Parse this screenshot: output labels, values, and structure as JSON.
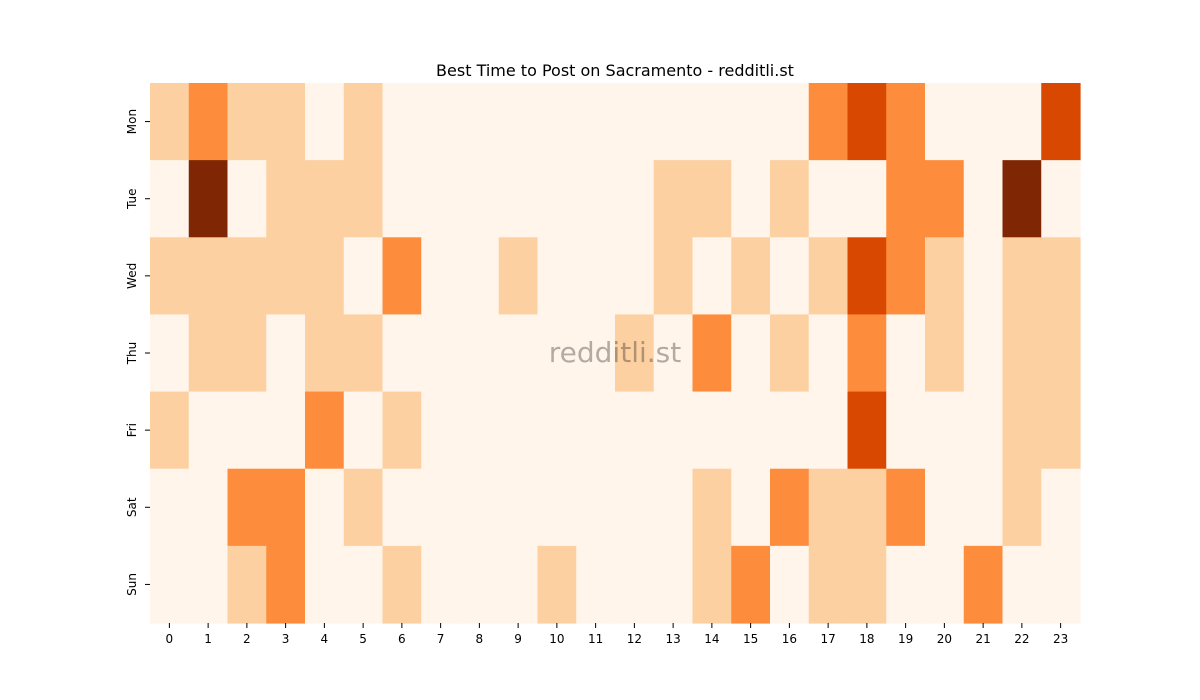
{
  "chart_data": {
    "type": "heatmap",
    "title": "Best Time to Post on Sacramento - redditli.st",
    "xlabel": "",
    "ylabel": "",
    "x_categories": [
      "0",
      "1",
      "2",
      "3",
      "4",
      "5",
      "6",
      "7",
      "8",
      "9",
      "10",
      "11",
      "12",
      "13",
      "14",
      "15",
      "16",
      "17",
      "18",
      "19",
      "20",
      "21",
      "22",
      "23"
    ],
    "y_categories": [
      "Mon",
      "Tue",
      "Wed",
      "Thu",
      "Fri",
      "Sat",
      "Sun"
    ],
    "values": [
      [
        1,
        2,
        1,
        1,
        0,
        1,
        0,
        0,
        0,
        0,
        0,
        0,
        0,
        0,
        0,
        0,
        0,
        2,
        3,
        2,
        0,
        0,
        0,
        3
      ],
      [
        0,
        4,
        0,
        1,
        1,
        1,
        0,
        0,
        0,
        0,
        0,
        0,
        0,
        1,
        1,
        0,
        1,
        0,
        0,
        2,
        2,
        0,
        4,
        0
      ],
      [
        1,
        1,
        1,
        1,
        1,
        0,
        2,
        0,
        0,
        1,
        0,
        0,
        0,
        1,
        0,
        1,
        0,
        1,
        3,
        2,
        1,
        0,
        1,
        1
      ],
      [
        0,
        1,
        1,
        0,
        1,
        1,
        0,
        0,
        0,
        0,
        0,
        0,
        1,
        0,
        2,
        0,
        1,
        0,
        2,
        0,
        1,
        0,
        1,
        1
      ],
      [
        1,
        0,
        0,
        0,
        2,
        0,
        1,
        0,
        0,
        0,
        0,
        0,
        0,
        0,
        0,
        0,
        0,
        0,
        3,
        0,
        0,
        0,
        1,
        1
      ],
      [
        0,
        0,
        2,
        2,
        0,
        1,
        0,
        0,
        0,
        0,
        0,
        0,
        0,
        0,
        1,
        0,
        2,
        1,
        1,
        2,
        0,
        0,
        1,
        0
      ],
      [
        0,
        0,
        1,
        2,
        0,
        0,
        1,
        0,
        0,
        0,
        1,
        0,
        0,
        0,
        1,
        2,
        0,
        1,
        1,
        0,
        0,
        2,
        0,
        0
      ]
    ],
    "value_range": [
      0,
      4
    ],
    "colormap": "Oranges",
    "level_colors": [
      "#fff5eb",
      "#fdd0a2",
      "#fd8d3c",
      "#d94801",
      "#7f2704"
    ],
    "colorbar": false,
    "watermark": "redditli.st"
  }
}
